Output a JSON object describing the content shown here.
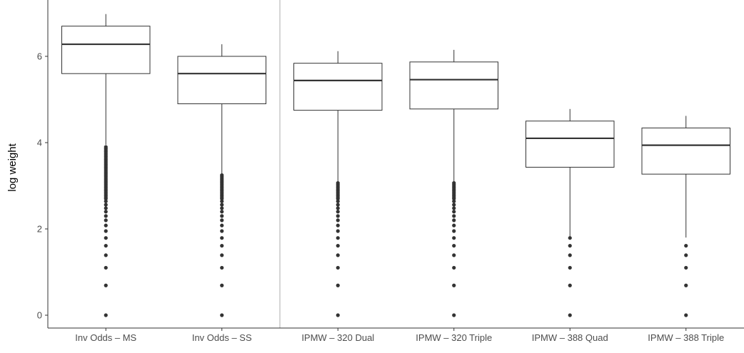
{
  "chart_data": {
    "type": "box",
    "title": "",
    "xlabel": "",
    "ylabel": "log weight",
    "ylim": [
      -0.3,
      7.05
    ],
    "yticks": [
      0,
      2,
      4,
      6
    ],
    "grid": false,
    "separator_after_category": 2,
    "categories": [
      "Inv Odds – MS",
      "Inv Odds – SS",
      "IPMW – 320 Dual",
      "IPMW – 320 Triple",
      "IPMW – 388 Quad",
      "IPMW – 388 Triple"
    ],
    "boxes": [
      {
        "min": 3.95,
        "q1": 5.6,
        "median": 6.28,
        "q3": 6.7,
        "max": 6.98
      },
      {
        "min": 3.28,
        "q1": 4.9,
        "median": 5.6,
        "q3": 6.0,
        "max": 6.28
      },
      {
        "min": 3.1,
        "q1": 4.75,
        "median": 5.44,
        "q3": 5.84,
        "max": 6.12
      },
      {
        "min": 3.1,
        "q1": 4.78,
        "median": 5.46,
        "q3": 5.87,
        "max": 6.15
      },
      {
        "min": 1.8,
        "q1": 3.43,
        "median": 4.1,
        "q3": 4.5,
        "max": 4.78
      },
      {
        "min": 1.8,
        "q1": 3.27,
        "median": 3.94,
        "q3": 4.34,
        "max": 4.62
      }
    ],
    "outliers": [
      {
        "discrete": [
          0,
          0.69,
          1.1,
          1.39,
          1.61,
          1.79,
          1.95,
          2.08,
          2.2,
          2.3,
          2.4,
          2.48,
          2.56,
          2.64
        ],
        "range": [
          2.7,
          3.9
        ]
      },
      {
        "discrete": [
          0,
          0.69,
          1.1,
          1.39,
          1.61,
          1.79,
          1.95,
          2.08,
          2.2,
          2.3,
          2.4,
          2.48,
          2.56,
          2.64
        ],
        "range": [
          2.7,
          3.25
        ]
      },
      {
        "discrete": [
          0,
          0.69,
          1.1,
          1.39,
          1.61,
          1.79,
          1.95,
          2.08,
          2.2,
          2.3,
          2.4,
          2.48,
          2.56,
          2.64
        ],
        "range": [
          2.7,
          3.08
        ]
      },
      {
        "discrete": [
          0,
          0.69,
          1.1,
          1.39,
          1.61,
          1.79,
          1.95,
          2.08,
          2.2,
          2.3,
          2.4,
          2.48,
          2.56,
          2.64
        ],
        "range": [
          2.7,
          3.08
        ]
      },
      {
        "discrete": [
          0,
          0.69,
          1.1,
          1.39,
          1.61,
          1.79
        ],
        "range": null
      },
      {
        "discrete": [
          0,
          0.69,
          1.1,
          1.39,
          1.61
        ],
        "range": null
      }
    ],
    "colors": {
      "box_fill": "#ffffff",
      "stroke": "#333333",
      "axis": "#333333",
      "separator": "#c8c8c8",
      "tick_label": "#4d4d4d"
    }
  }
}
